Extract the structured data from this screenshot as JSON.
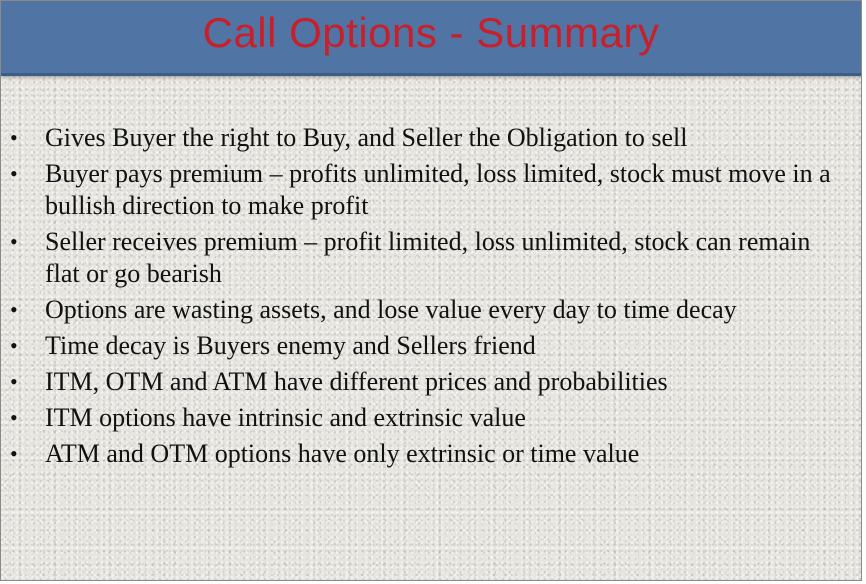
{
  "slide": {
    "title": "Call Options - Summary",
    "bullet_marker": "•",
    "bullets": [
      "Gives Buyer the right to Buy, and Seller the Obligation to sell",
      "Buyer pays premium – profits unlimited, loss limited, stock must move in a bullish direction to make profit",
      "Seller receives premium – profit limited, loss unlimited, stock can remain flat or go bearish",
      "Options are wasting assets, and lose value every day to time decay",
      "Time decay is Buyers enemy and Sellers friend",
      "ITM, OTM and ATM have different prices and probabilities",
      "ITM options have intrinsic and extrinsic value",
      "ATM and OTM options have only extrinsic or time value"
    ]
  },
  "colors": {
    "title_bar": "#5074a3",
    "title_text": "#c8202b",
    "body_background": "#e6e5e0",
    "body_text": "#111111"
  }
}
